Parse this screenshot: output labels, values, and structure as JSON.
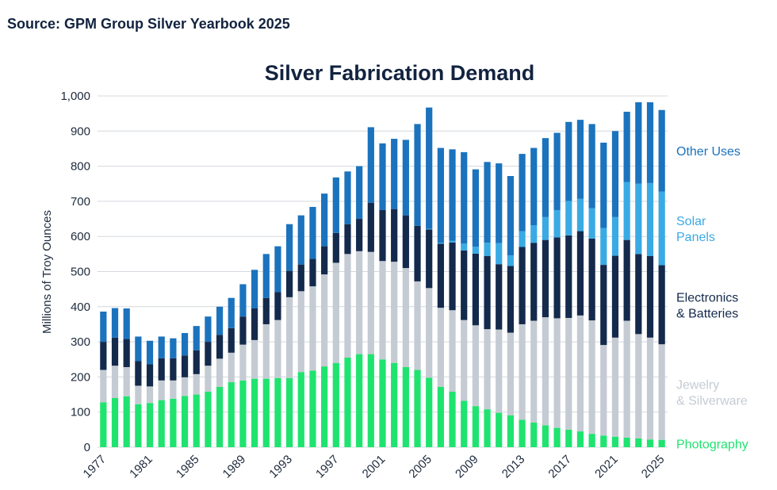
{
  "source": "Source: GPM Group Silver Yearbook 2025",
  "chart_data": {
    "type": "bar",
    "stacked": true,
    "title": "Silver Fabrication Demand",
    "ylabel": "Millions of Troy Ounces",
    "xlabel": "",
    "ylim": [
      0,
      1000
    ],
    "yticks": [
      0,
      100,
      200,
      300,
      400,
      500,
      600,
      700,
      800,
      900,
      1000
    ],
    "ytick_labels": [
      "0",
      "100",
      "200",
      "300",
      "400",
      "500",
      "600",
      "700",
      "800",
      "900",
      "1,000"
    ],
    "grid": true,
    "categories": [
      1977,
      1978,
      1979,
      1980,
      1981,
      1982,
      1983,
      1984,
      1985,
      1986,
      1987,
      1988,
      1989,
      1990,
      1991,
      1992,
      1993,
      1994,
      1995,
      1996,
      1997,
      1998,
      1999,
      2000,
      2001,
      2002,
      2003,
      2004,
      2005,
      2006,
      2007,
      2008,
      2009,
      2010,
      2011,
      2012,
      2013,
      2014,
      2015,
      2016,
      2017,
      2018,
      2019,
      2020,
      2021,
      2022,
      2023,
      2024,
      2025
    ],
    "xtick_labels": [
      "1977",
      "1981",
      "1985",
      "1989",
      "1993",
      "1997",
      "2001",
      "2005",
      "2009",
      "2013",
      "2017",
      "2021",
      "2025"
    ],
    "legend_position": "right",
    "series": [
      {
        "name": "Photography",
        "color": "#1fe36f",
        "values": [
          128,
          140,
          145,
          122,
          126,
          134,
          138,
          146,
          150,
          158,
          172,
          185,
          190,
          195,
          195,
          197,
          197,
          214,
          218,
          230,
          240,
          255,
          265,
          265,
          250,
          240,
          228,
          220,
          198,
          172,
          158,
          132,
          117,
          108,
          98,
          91,
          78,
          70,
          62,
          55,
          50,
          45,
          38,
          33,
          30,
          27,
          25,
          22,
          21
        ]
      },
      {
        "name": "Jewelry & Silverware",
        "label_lines": [
          "Jewelry",
          "& Silverware"
        ],
        "color": "#c5cbd3",
        "values": [
          92,
          92,
          83,
          53,
          47,
          56,
          52,
          53,
          58,
          74,
          80,
          84,
          102,
          110,
          155,
          165,
          230,
          230,
          240,
          262,
          285,
          295,
          293,
          291,
          280,
          288,
          282,
          252,
          255,
          225,
          232,
          230,
          230,
          228,
          237,
          235,
          272,
          290,
          308,
          312,
          318,
          330,
          323,
          258,
          282,
          333,
          297,
          290,
          272
        ]
      },
      {
        "name": "Electronics & Batteries",
        "label_lines": [
          "Electronics",
          "& Batteries"
        ],
        "color": "#142a4c",
        "values": [
          80,
          80,
          80,
          70,
          63,
          63,
          63,
          62,
          68,
          68,
          68,
          70,
          80,
          90,
          75,
          80,
          75,
          76,
          78,
          80,
          85,
          85,
          92,
          140,
          145,
          150,
          150,
          158,
          167,
          182,
          193,
          198,
          204,
          208,
          186,
          190,
          220,
          222,
          220,
          230,
          235,
          240,
          233,
          228,
          233,
          230,
          228,
          232,
          225
        ]
      },
      {
        "name": "Solar Panels",
        "label_lines": [
          "Solar",
          "Panels"
        ],
        "color": "#3aaae4",
        "values": [
          0,
          0,
          0,
          0,
          0,
          0,
          0,
          0,
          0,
          0,
          0,
          0,
          0,
          0,
          0,
          0,
          0,
          0,
          0,
          0,
          0,
          0,
          0,
          0,
          0,
          0,
          0,
          0,
          2,
          3,
          5,
          20,
          20,
          38,
          60,
          30,
          45,
          50,
          65,
          78,
          98,
          92,
          86,
          105,
          110,
          165,
          200,
          208,
          210
        ]
      },
      {
        "name": "Other Uses",
        "label_lines": [
          "Other Uses"
        ],
        "color": "#1b73bd",
        "values": [
          86,
          84,
          87,
          70,
          67,
          62,
          57,
          64,
          69,
          72,
          80,
          86,
          92,
          110,
          125,
          130,
          133,
          140,
          148,
          150,
          158,
          150,
          150,
          215,
          190,
          200,
          215,
          290,
          345,
          270,
          260,
          260,
          220,
          230,
          227,
          226,
          220,
          220,
          225,
          220,
          225,
          225,
          240,
          243,
          245,
          200,
          232,
          230,
          232
        ]
      }
    ]
  }
}
